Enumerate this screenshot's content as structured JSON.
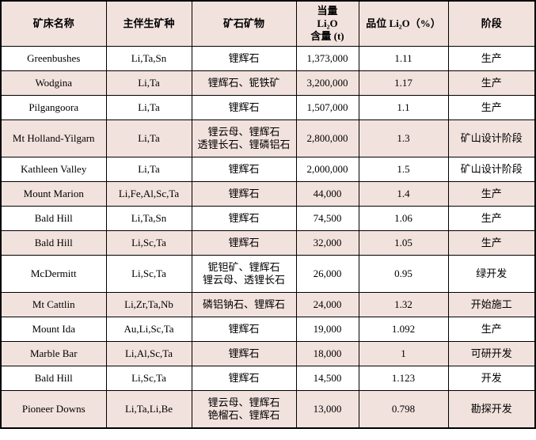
{
  "colors": {
    "header_bg": "#f2e2dd",
    "row_alt_bg": "#f2e2dd",
    "row_bg": "#ffffff",
    "border": "#000000",
    "text": "#000000"
  },
  "table": {
    "columns": [
      "矿床名称",
      "主伴生矿种",
      "矿石矿物",
      "当量\nLi₂O\n含量 (t)",
      "品位 Li₂O（%）",
      "阶段"
    ],
    "rows": [
      [
        "Greenbushes",
        "Li,Ta,Sn",
        "锂辉石",
        "1,373,000",
        "1.11",
        "生产"
      ],
      [
        "Wodgina",
        "Li,Ta",
        "锂辉石、铌铁矿",
        "3,200,000",
        "1.17",
        "生产"
      ],
      [
        "Pilgangoora",
        "Li,Ta",
        "锂辉石",
        "1,507,000",
        "1.1",
        "生产"
      ],
      [
        "Mt Holland-Yilgarn",
        "Li,Ta",
        "锂云母、锂辉石\n透锂长石、锂磷铝石",
        "2,800,000",
        "1.3",
        "矿山设计阶段"
      ],
      [
        "Kathleen Valley",
        "Li,Ta",
        "锂辉石",
        "2,000,000",
        "1.5",
        "矿山设计阶段"
      ],
      [
        "Mount Marion",
        "Li,Fe,Al,Sc,Ta",
        "锂辉石",
        "44,000",
        "1.4",
        "生产"
      ],
      [
        "Bald Hill",
        "Li,Ta,Sn",
        "锂辉石",
        "74,500",
        "1.06",
        "生产"
      ],
      [
        "Bald Hill",
        "Li,Sc,Ta",
        "锂辉石",
        "32,000",
        "1.05",
        "生产"
      ],
      [
        "McDermitt",
        "Li,Sc,Ta",
        "铌钽矿、锂辉石\n锂云母、透锂长石",
        "26,000",
        "0.95",
        "绿开发"
      ],
      [
        "Mt Cattlin",
        "Li,Zr,Ta,Nb",
        "磷铝钠石、锂辉石",
        "24,000",
        "1.32",
        "开始施工"
      ],
      [
        "Mount Ida",
        "Au,Li,Sc,Ta",
        "锂辉石",
        "19,000",
        "1.092",
        "生产"
      ],
      [
        "Marble Bar",
        "Li,Al,Sc,Ta",
        "锂辉石",
        "18,000",
        "1",
        "可研开发"
      ],
      [
        "Bald Hill",
        "Li,Sc,Ta",
        "锂辉石",
        "14,500",
        "1.123",
        "开发"
      ],
      [
        "Pioneer Downs",
        "Li,Ta,Li,Be",
        "锂云母、锂辉石\n铯榴石、锂辉石",
        "13,000",
        "0.798",
        "勘探开发"
      ]
    ]
  }
}
